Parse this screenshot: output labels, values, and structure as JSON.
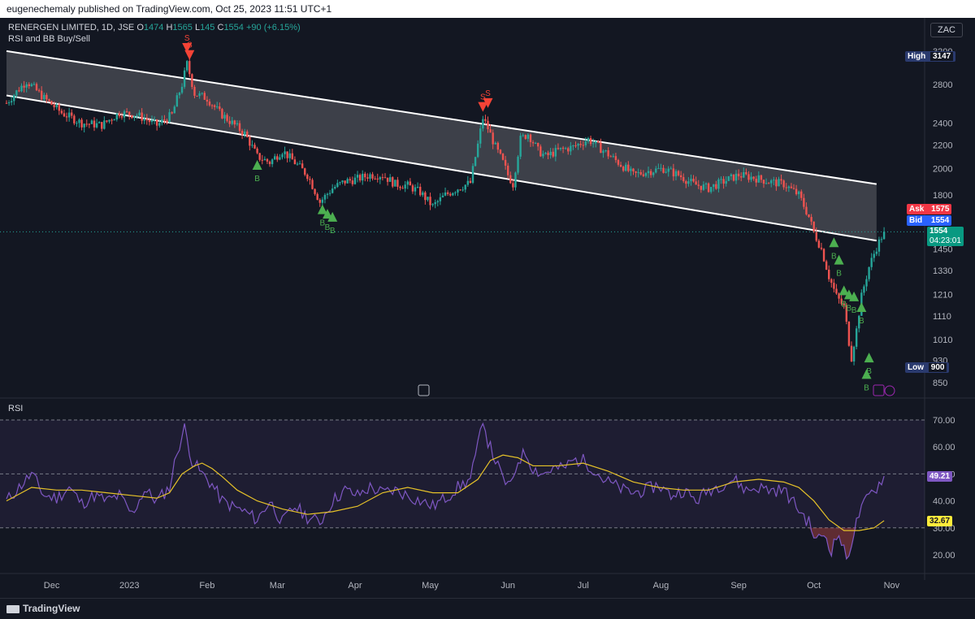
{
  "header": {
    "published": "eugenechemaly published on TradingView.com, Oct 25, 2023 11:51 UTC+1"
  },
  "legend": {
    "symbol": "RENERGEN LIMITED, 1D, JSE",
    "o_label": "O",
    "o": "1474",
    "h_label": "H",
    "h": "1565",
    "l_label": "L",
    "l": "145",
    "c_label": "C",
    "c": "1554",
    "change": "+90 (+6.15%)",
    "indicator": "RSI and BB Buy/Sell"
  },
  "currency_button": "ZAC",
  "price_tags": {
    "high_label": "High",
    "high": "3147",
    "ask_label": "Ask",
    "ask": "1575",
    "bid_label": "Bid",
    "bid": "1554",
    "last": "1554",
    "countdown": "04:23:01",
    "low_label": "Low",
    "low": "900"
  },
  "rsi_tags": {
    "rsi": "49.21",
    "ma": "32.67"
  },
  "rsi_pane_label": "RSI",
  "footer": {
    "brand": "TradingView"
  },
  "colors": {
    "up": "#26a69a",
    "down": "#ef5350",
    "rsi": "#7e57c2",
    "rsi_ma": "#e6c229",
    "buy": "#4caf50",
    "sell": "#f44336",
    "channel": "#ffffff"
  },
  "chart_data": [
    {
      "type": "candlestick",
      "price_scale": "log",
      "y_ticks": [
        850,
        930,
        1010,
        1110,
        1210,
        1330,
        1450,
        1800,
        2000,
        2200,
        2400,
        2800,
        3200
      ],
      "x_ticks": [
        "Dec",
        "2023",
        "Feb",
        "Mar",
        "Apr",
        "May",
        "Jun",
        "Jul",
        "Aug",
        "Sep",
        "Oct",
        "Nov"
      ],
      "x_tick_days": [
        18,
        49,
        80,
        108,
        139,
        169,
        200,
        230,
        261,
        292,
        322,
        353
      ],
      "close_path": [
        [
          0,
          2600
        ],
        [
          8,
          2840
        ],
        [
          15,
          2650
        ],
        [
          22,
          2500
        ],
        [
          30,
          2400
        ],
        [
          38,
          2380
        ],
        [
          45,
          2500
        ],
        [
          52,
          2480
        ],
        [
          60,
          2380
        ],
        [
          66,
          2480
        ],
        [
          70,
          2800
        ],
        [
          72,
          3040
        ],
        [
          75,
          2700
        ],
        [
          80,
          2650
        ],
        [
          85,
          2500
        ],
        [
          90,
          2400
        ],
        [
          95,
          2300
        ],
        [
          100,
          2100
        ],
        [
          105,
          2050
        ],
        [
          110,
          2150
        ],
        [
          115,
          2050
        ],
        [
          120,
          1950
        ],
        [
          125,
          1750
        ],
        [
          130,
          1850
        ],
        [
          135,
          1900
        ],
        [
          140,
          1920
        ],
        [
          145,
          1950
        ],
        [
          150,
          1950
        ],
        [
          155,
          1880
        ],
        [
          160,
          1870
        ],
        [
          165,
          1820
        ],
        [
          170,
          1720
        ],
        [
          175,
          1800
        ],
        [
          180,
          1850
        ],
        [
          185,
          1890
        ],
        [
          188,
          2200
        ],
        [
          190,
          2450
        ],
        [
          192,
          2350
        ],
        [
          195,
          2180
        ],
        [
          198,
          2050
        ],
        [
          200,
          1950
        ],
        [
          202,
          1880
        ],
        [
          205,
          2250
        ],
        [
          208,
          2300
        ],
        [
          212,
          2150
        ],
        [
          215,
          2100
        ],
        [
          220,
          2150
        ],
        [
          226,
          2180
        ],
        [
          232,
          2250
        ],
        [
          238,
          2150
        ],
        [
          244,
          2050
        ],
        [
          250,
          1950
        ],
        [
          256,
          1980
        ],
        [
          262,
          2000
        ],
        [
          268,
          1950
        ],
        [
          274,
          1880
        ],
        [
          280,
          1850
        ],
        [
          286,
          1900
        ],
        [
          292,
          1950
        ],
        [
          298,
          1930
        ],
        [
          304,
          1900
        ],
        [
          310,
          1880
        ],
        [
          316,
          1800
        ],
        [
          320,
          1650
        ],
        [
          322,
          1550
        ],
        [
          325,
          1450
        ],
        [
          328,
          1300
        ],
        [
          331,
          1200
        ],
        [
          334,
          1150
        ],
        [
          336,
          1000
        ],
        [
          337,
          940
        ],
        [
          339,
          1050
        ],
        [
          341,
          1200
        ],
        [
          344,
          1350
        ],
        [
          347,
          1460
        ],
        [
          350,
          1554
        ]
      ],
      "channel": {
        "upper": [
          [
            0,
            3200
          ],
          [
            347,
            1880
          ]
        ],
        "lower": [
          [
            0,
            2680
          ],
          [
            347,
            1500
          ]
        ]
      },
      "high": 3147,
      "low": 900,
      "last": 1554,
      "ask": 1575,
      "bid": 1554,
      "buy_signal_label": "B",
      "sell_signal_label": "S",
      "buy_signals": [
        [
          100,
          2030
        ],
        [
          126,
          1700
        ],
        [
          128,
          1670
        ],
        [
          130,
          1650
        ],
        [
          330,
          1490
        ],
        [
          332,
          1390
        ],
        [
          334,
          1230
        ],
        [
          336,
          1210
        ],
        [
          338,
          1200
        ],
        [
          341,
          1150
        ],
        [
          344,
          940
        ],
        [
          343,
          880
        ]
      ],
      "sell_signals": [
        [
          73,
          3150
        ],
        [
          72,
          3240
        ],
        [
          190,
          2560
        ],
        [
          192,
          2600
        ]
      ]
    },
    {
      "type": "line",
      "title": "RSI",
      "y_ticks": [
        20,
        30,
        40,
        50,
        60,
        70
      ],
      "band": [
        30,
        70
      ],
      "mid_line": 50,
      "series": [
        {
          "values": [
            [
              0,
              40
            ],
            [
              5,
              45
            ],
            [
              10,
              50
            ],
            [
              15,
              42
            ],
            [
              20,
              41
            ],
            [
              25,
              45
            ],
            [
              30,
              39
            ],
            [
              35,
              42
            ],
            [
              40,
              40
            ],
            [
              45,
              42
            ],
            [
              50,
              35
            ],
            [
              55,
              44
            ],
            [
              60,
              40
            ],
            [
              65,
              45
            ],
            [
              68,
              58
            ],
            [
              71,
              67
            ],
            [
              74,
              55
            ],
            [
              78,
              50
            ],
            [
              82,
              46
            ],
            [
              86,
              40
            ],
            [
              90,
              38
            ],
            [
              95,
              36
            ],
            [
              100,
              33
            ],
            [
              105,
              40
            ],
            [
              110,
              32
            ],
            [
              115,
              38
            ],
            [
              120,
              34
            ],
            [
              125,
              32
            ],
            [
              130,
              40
            ],
            [
              135,
              44
            ],
            [
              140,
              42
            ],
            [
              145,
              45
            ],
            [
              150,
              43
            ],
            [
              155,
              44
            ],
            [
              160,
              42
            ],
            [
              165,
              40
            ],
            [
              170,
              38
            ],
            [
              175,
              41
            ],
            [
              180,
              45
            ],
            [
              185,
              48
            ],
            [
              188,
              60
            ],
            [
              190,
              71
            ],
            [
              192,
              62
            ],
            [
              195,
              55
            ],
            [
              198,
              48
            ],
            [
              201,
              45
            ],
            [
              204,
              55
            ],
            [
              207,
              58
            ],
            [
              210,
              52
            ],
            [
              214,
              50
            ],
            [
              218,
              52
            ],
            [
              222,
              52
            ],
            [
              226,
              55
            ],
            [
              230,
              55
            ],
            [
              234,
              52
            ],
            [
              238,
              48
            ],
            [
              242,
              46
            ],
            [
              246,
              44
            ],
            [
              250,
              43
            ],
            [
              255,
              44
            ],
            [
              260,
              46
            ],
            [
              265,
              42
            ],
            [
              270,
              44
            ],
            [
              275,
              40
            ],
            [
              280,
              44
            ],
            [
              285,
              46
            ],
            [
              290,
              48
            ],
            [
              295,
              44
            ],
            [
              300,
              45
            ],
            [
              305,
              44
            ],
            [
              310,
              44
            ],
            [
              315,
              38
            ],
            [
              320,
              32
            ],
            [
              323,
              25
            ],
            [
              326,
              28
            ],
            [
              329,
              22
            ],
            [
              332,
              28
            ],
            [
              335,
              18
            ],
            [
              337,
              25
            ],
            [
              340,
              35
            ],
            [
              344,
              42
            ],
            [
              347,
              45
            ],
            [
              350,
              49.21
            ]
          ]
        },
        {
          "values": [
            [
              0,
              40
            ],
            [
              10,
              45
            ],
            [
              20,
              44
            ],
            [
              30,
              44
            ],
            [
              40,
              43
            ],
            [
              50,
              42
            ],
            [
              60,
              41
            ],
            [
              65,
              43
            ],
            [
              70,
              50
            ],
            [
              75,
              53
            ],
            [
              78,
              54
            ],
            [
              82,
              52
            ],
            [
              86,
              49
            ],
            [
              92,
              44
            ],
            [
              100,
              40
            ],
            [
              110,
              37
            ],
            [
              120,
              35
            ],
            [
              130,
              36
            ],
            [
              140,
              38
            ],
            [
              150,
              43
            ],
            [
              160,
              45
            ],
            [
              170,
              43
            ],
            [
              180,
              43
            ],
            [
              188,
              48
            ],
            [
              193,
              55
            ],
            [
              198,
              57
            ],
            [
              204,
              56
            ],
            [
              210,
              53
            ],
            [
              220,
              53
            ],
            [
              230,
              54
            ],
            [
              240,
              51
            ],
            [
              250,
              47
            ],
            [
              260,
              45
            ],
            [
              270,
              44
            ],
            [
              280,
              44
            ],
            [
              290,
              47
            ],
            [
              300,
              48
            ],
            [
              310,
              47
            ],
            [
              316,
              45
            ],
            [
              322,
              40
            ],
            [
              328,
              33
            ],
            [
              334,
              29
            ],
            [
              340,
              29
            ],
            [
              346,
              30
            ],
            [
              350,
              32.67
            ]
          ]
        }
      ]
    }
  ]
}
